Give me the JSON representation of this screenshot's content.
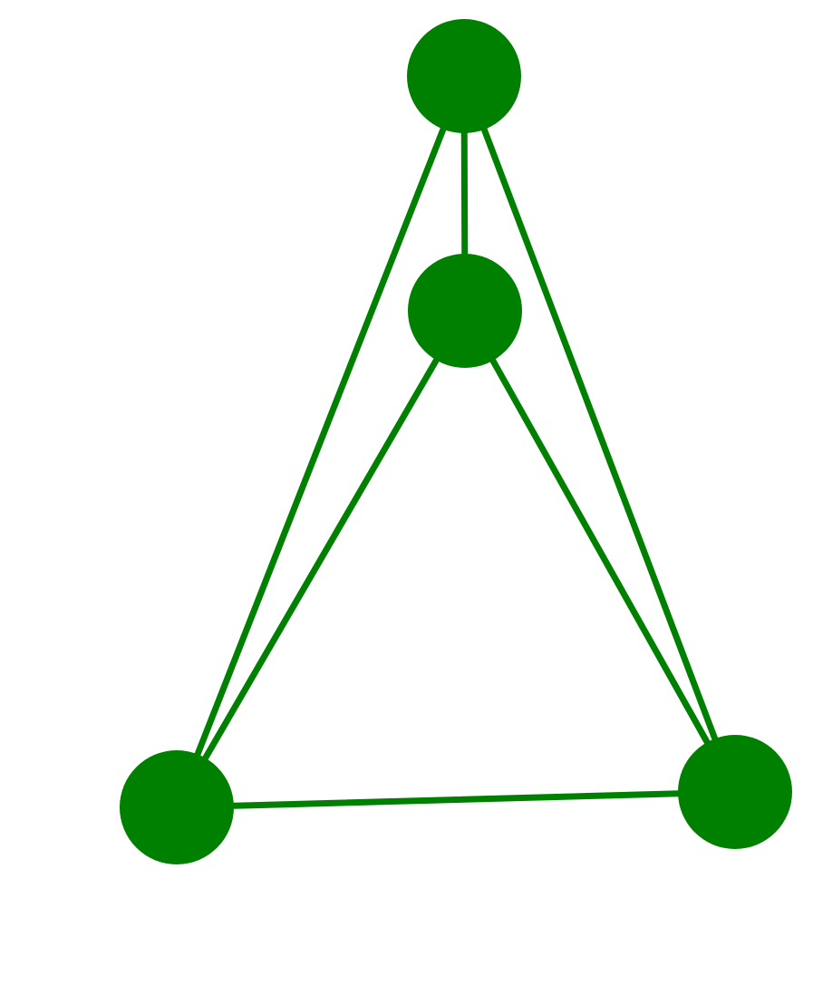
{
  "graph": {
    "directed": false,
    "node_color": "#008000",
    "edge_color": "#008000",
    "background": "#ffffff",
    "nodes": [
      {
        "id": "top",
        "label": ""
      },
      {
        "id": "center",
        "label": ""
      },
      {
        "id": "bottom-left",
        "label": ""
      },
      {
        "id": "bottom-right",
        "label": ""
      }
    ],
    "edges": [
      {
        "source": "top",
        "target": "center"
      },
      {
        "source": "top",
        "target": "bottom-left"
      },
      {
        "source": "top",
        "target": "bottom-right"
      },
      {
        "source": "center",
        "target": "bottom-left"
      },
      {
        "source": "center",
        "target": "bottom-right"
      },
      {
        "source": "bottom-left",
        "target": "bottom-right"
      }
    ]
  }
}
